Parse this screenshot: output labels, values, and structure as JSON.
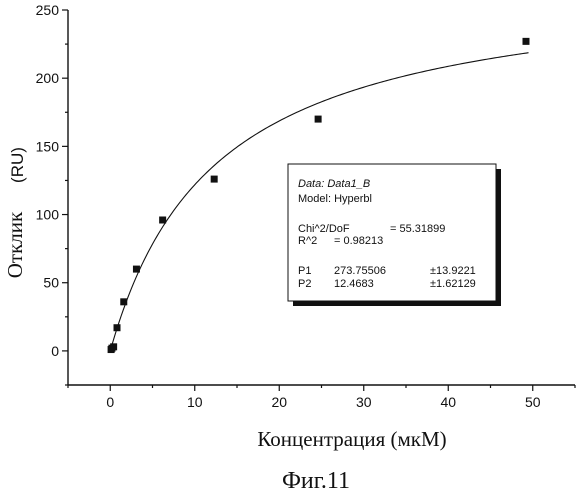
{
  "chart_data": {
    "type": "scatter",
    "xlabel": "Концентрация (мкМ)",
    "ylabel": "Отклик",
    "ylabel_unit": "(RU)",
    "xlim": [
      -5,
      55
    ],
    "ylim": [
      -25,
      250
    ],
    "x_ticks": [
      0,
      10,
      20,
      30,
      40,
      50
    ],
    "y_ticks": [
      0,
      50,
      100,
      150,
      200,
      250
    ],
    "grid": false,
    "points": [
      {
        "x": 0.1,
        "y": 1
      },
      {
        "x": 0.2,
        "y": 2
      },
      {
        "x": 0.4,
        "y": 3
      },
      {
        "x": 0.8,
        "y": 17
      },
      {
        "x": 1.6,
        "y": 36
      },
      {
        "x": 3.1,
        "y": 60
      },
      {
        "x": 6.2,
        "y": 96
      },
      {
        "x": 12.3,
        "y": 126
      },
      {
        "x": 24.6,
        "y": 170
      },
      {
        "x": 49.2,
        "y": 227
      }
    ],
    "fit": {
      "model": "Hyperbl",
      "P1": 273.75506,
      "P2": 12.4683
    },
    "legend": {
      "position": "center-right",
      "data_line": "Data: Data1_B",
      "model_line": "Model: Hyperbl",
      "chi_label": "Chi^2/DoF",
      "chi_value": "= 55.31899",
      "r2_label": "R^2",
      "r2_value": "= 0.98213",
      "params": [
        {
          "name": "P1",
          "value": "273.75506",
          "error": "±13.9221"
        },
        {
          "name": "P2",
          "value": "12.4683",
          "error": "±1.62129"
        }
      ]
    }
  },
  "caption": "Фиг.11"
}
